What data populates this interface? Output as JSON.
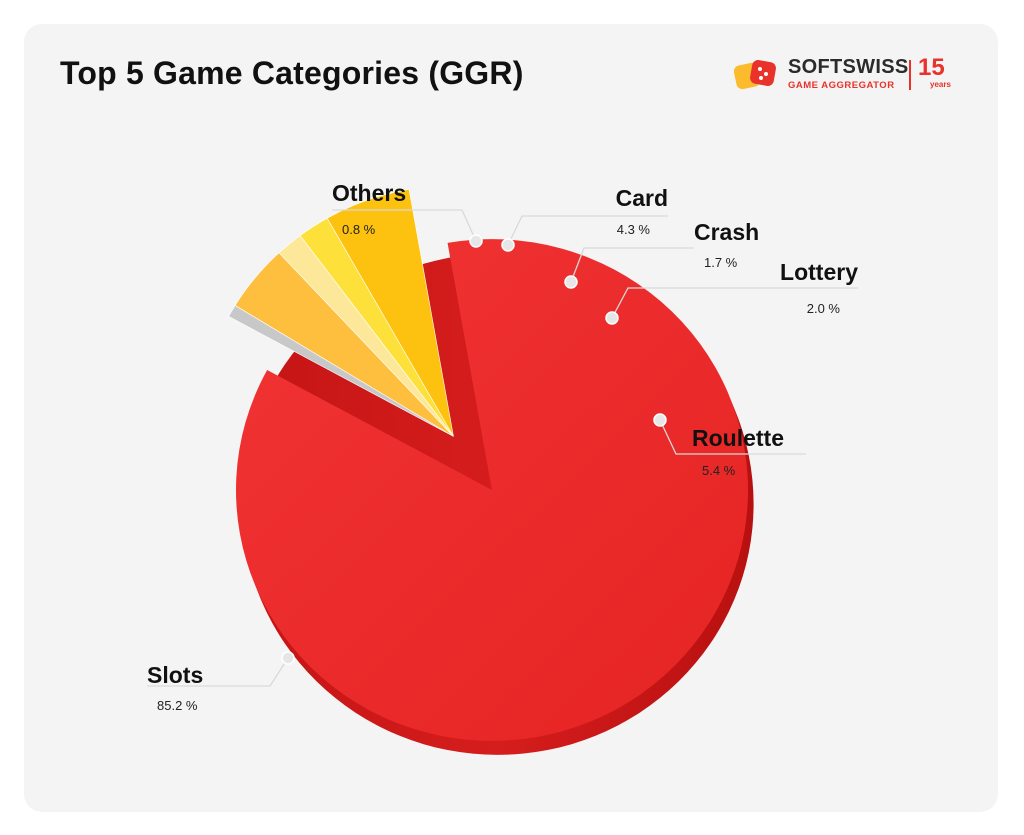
{
  "header": {
    "title": "Top 5 Game Categories (GGR)"
  },
  "brand": {
    "name": "SOFTSWISS",
    "subtitle": "GAME AGGREGATOR",
    "anniversary_number": "15",
    "anniversary_text": "years"
  },
  "chart_data": {
    "type": "pie",
    "title": "Top 5 Game Categories (GGR)",
    "unit": "%",
    "slices": [
      {
        "name": "Slots",
        "value": 85.2,
        "display": "85.2 %",
        "color": "#ee2a2a"
      },
      {
        "name": "Others",
        "value": 0.8,
        "display": "0.8 %",
        "color": "#c8c8c8"
      },
      {
        "name": "Card",
        "value": 4.3,
        "display": "4.3 %",
        "color": "#fdbf3d"
      },
      {
        "name": "Crash",
        "value": 1.7,
        "display": "1.7 %",
        "color": "#fde89a"
      },
      {
        "name": "Lottery",
        "value": 2.0,
        "display": "2.0 %",
        "color": "#fde13a"
      },
      {
        "name": "Roulette",
        "value": 5.4,
        "display": "5.4 %",
        "color": "#fdc20f"
      }
    ]
  }
}
